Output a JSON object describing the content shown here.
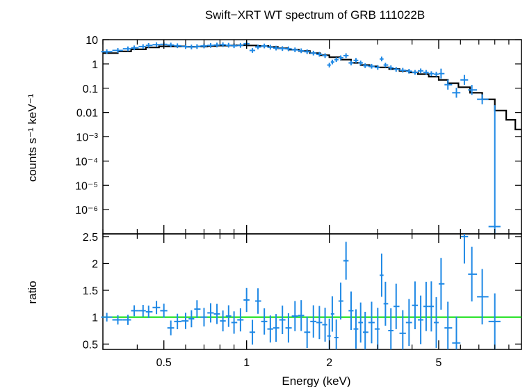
{
  "chart_data": [
    {
      "type": "scatter",
      "title": "Swift−XRT WT spectrum of GRB 111022B",
      "xlabel": "",
      "ylabel": "counts s⁻¹ keV⁻¹",
      "xscale": "log",
      "yscale": "log",
      "xlim": [
        0.3,
        10
      ],
      "ylim": [
        1e-07,
        10
      ],
      "ytick_labels": [
        "10",
        "1",
        "0.1",
        "0.01",
        "10⁻³",
        "10⁻⁴",
        "10⁻⁵",
        "10⁻⁶"
      ],
      "series": [
        {
          "style": "error-crosses",
          "color": "#1e88e5",
          "points": [
            [
              0.31,
              3.2
            ],
            [
              0.34,
              3.6
            ],
            [
              0.37,
              4.2
            ],
            [
              0.39,
              4.6
            ],
            [
              0.42,
              5.2
            ],
            [
              0.44,
              5.8
            ],
            [
              0.47,
              6.2
            ],
            [
              0.5,
              6.4
            ],
            [
              0.53,
              6.0
            ],
            [
              0.56,
              5.6
            ],
            [
              0.6,
              5.2
            ],
            [
              0.63,
              5.0
            ],
            [
              0.66,
              5.2
            ],
            [
              0.7,
              5.5
            ],
            [
              0.74,
              5.8
            ],
            [
              0.78,
              6.0
            ],
            [
              0.82,
              6.2
            ],
            [
              0.86,
              5.9
            ],
            [
              0.9,
              5.6
            ],
            [
              0.95,
              5.8
            ],
            [
              1.0,
              6.8
            ],
            [
              1.05,
              3.6
            ],
            [
              1.1,
              5.0
            ],
            [
              1.16,
              5.5
            ],
            [
              1.22,
              4.9
            ],
            [
              1.28,
              4.5
            ],
            [
              1.35,
              4.3
            ],
            [
              1.42,
              4.2
            ],
            [
              1.5,
              3.8
            ],
            [
              1.58,
              3.5
            ],
            [
              1.66,
              3.2
            ],
            [
              1.75,
              2.8
            ],
            [
              1.84,
              2.5
            ],
            [
              1.93,
              2.2
            ],
            [
              2.0,
              0.9
            ],
            [
              2.05,
              1.2
            ],
            [
              2.12,
              1.5
            ],
            [
              2.2,
              1.8
            ],
            [
              2.3,
              2.2
            ],
            [
              2.4,
              1.1
            ],
            [
              2.5,
              1.4
            ],
            [
              2.6,
              1.1
            ],
            [
              2.7,
              0.85
            ],
            [
              2.85,
              0.8
            ],
            [
              3.0,
              0.72
            ],
            [
              3.1,
              1.6
            ],
            [
              3.2,
              0.9
            ],
            [
              3.35,
              0.7
            ],
            [
              3.5,
              0.6
            ],
            [
              3.7,
              0.55
            ],
            [
              3.9,
              0.5
            ],
            [
              4.1,
              0.45
            ],
            [
              4.3,
              0.52
            ],
            [
              4.5,
              0.45
            ],
            [
              4.7,
              0.4
            ],
            [
              4.9,
              0.38
            ],
            [
              5.1,
              0.4
            ],
            [
              5.4,
              0.14
            ],
            [
              5.8,
              0.065
            ],
            [
              6.2,
              0.22
            ],
            [
              6.6,
              0.085
            ],
            [
              7.2,
              0.035
            ],
            [
              8.0,
              2e-07
            ]
          ]
        },
        {
          "style": "step",
          "color": "#000000",
          "values": [
            [
              0.3,
              2.8
            ],
            [
              0.34,
              3.3
            ],
            [
              0.38,
              4.0
            ],
            [
              0.43,
              4.8
            ],
            [
              0.48,
              5.3
            ],
            [
              0.54,
              5.3
            ],
            [
              0.6,
              5.1
            ],
            [
              0.66,
              5.2
            ],
            [
              0.72,
              5.5
            ],
            [
              0.78,
              5.7
            ],
            [
              0.85,
              5.8
            ],
            [
              0.92,
              5.9
            ],
            [
              1.0,
              5.8
            ],
            [
              1.1,
              5.5
            ],
            [
              1.2,
              5.0
            ],
            [
              1.3,
              4.4
            ],
            [
              1.42,
              3.9
            ],
            [
              1.55,
              3.4
            ],
            [
              1.7,
              2.8
            ],
            [
              1.85,
              2.3
            ],
            [
              2.0,
              1.9
            ],
            [
              2.2,
              1.5
            ],
            [
              2.4,
              1.1
            ],
            [
              2.6,
              0.9
            ],
            [
              2.8,
              0.8
            ],
            [
              3.0,
              0.72
            ],
            [
              3.3,
              0.62
            ],
            [
              3.6,
              0.52
            ],
            [
              3.9,
              0.45
            ],
            [
              4.2,
              0.38
            ],
            [
              4.6,
              0.3
            ],
            [
              5.0,
              0.22
            ],
            [
              5.4,
              0.16
            ],
            [
              5.9,
              0.11
            ],
            [
              6.5,
              0.065
            ],
            [
              7.2,
              0.035
            ],
            [
              8.0,
              0.012
            ],
            [
              8.8,
              0.005
            ],
            [
              9.5,
              0.002
            ]
          ]
        }
      ]
    },
    {
      "type": "scatter",
      "title": "",
      "xlabel": "Energy (keV)",
      "ylabel": "ratio",
      "xscale": "log",
      "xlim": [
        0.3,
        10
      ],
      "ylim": [
        0.4,
        2.55
      ],
      "xtick_labels": [
        "0.5",
        "1",
        "2",
        "5"
      ],
      "ytick_labels": [
        "0.5",
        "1",
        "1.5",
        "2",
        "2.5"
      ],
      "reference_line": {
        "y": 1,
        "color": "#00dd00"
      },
      "series": [
        {
          "style": "error-crosses",
          "color": "#1e88e5",
          "points": [
            [
              0.31,
              1.0
            ],
            [
              0.34,
              0.95
            ],
            [
              0.37,
              0.95
            ],
            [
              0.39,
              1.12
            ],
            [
              0.42,
              1.12
            ],
            [
              0.44,
              1.1
            ],
            [
              0.47,
              1.18
            ],
            [
              0.5,
              1.12
            ],
            [
              0.53,
              0.8
            ],
            [
              0.56,
              0.92
            ],
            [
              0.6,
              0.93
            ],
            [
              0.63,
              0.97
            ],
            [
              0.66,
              1.15
            ],
            [
              0.7,
              1.0
            ],
            [
              0.74,
              1.08
            ],
            [
              0.78,
              1.06
            ],
            [
              0.82,
              0.93
            ],
            [
              0.86,
              1.02
            ],
            [
              0.9,
              0.9
            ],
            [
              0.95,
              0.95
            ],
            [
              1.0,
              1.32
            ],
            [
              1.05,
              0.72
            ],
            [
              1.1,
              1.3
            ],
            [
              1.16,
              0.92
            ],
            [
              1.22,
              0.78
            ],
            [
              1.28,
              0.8
            ],
            [
              1.35,
              0.95
            ],
            [
              1.42,
              0.8
            ],
            [
              1.5,
              1.02
            ],
            [
              1.58,
              1.03
            ],
            [
              1.66,
              0.72
            ],
            [
              1.75,
              0.92
            ],
            [
              1.84,
              0.9
            ],
            [
              1.93,
              0.86
            ],
            [
              2.0,
              0.65
            ],
            [
              2.05,
              1.06
            ],
            [
              2.12,
              0.62
            ],
            [
              2.2,
              1.3
            ],
            [
              2.3,
              2.05
            ],
            [
              2.4,
              1.12
            ],
            [
              2.5,
              0.78
            ],
            [
              2.6,
              0.9
            ],
            [
              2.7,
              0.72
            ],
            [
              2.85,
              0.9
            ],
            [
              3.0,
              0.78
            ],
            [
              3.1,
              1.78
            ],
            [
              3.2,
              1.25
            ],
            [
              3.35,
              0.75
            ],
            [
              3.5,
              1.2
            ],
            [
              3.7,
              0.7
            ],
            [
              3.9,
              0.9
            ],
            [
              4.1,
              1.22
            ],
            [
              4.3,
              0.95
            ],
            [
              4.5,
              1.2
            ],
            [
              4.7,
              1.2
            ],
            [
              4.9,
              0.9
            ],
            [
              5.1,
              1.62
            ],
            [
              5.4,
              0.8
            ],
            [
              5.8,
              0.52
            ],
            [
              6.2,
              2.5
            ],
            [
              6.6,
              1.8
            ],
            [
              7.2,
              1.38
            ],
            [
              8.0,
              0.92
            ]
          ]
        }
      ]
    }
  ]
}
